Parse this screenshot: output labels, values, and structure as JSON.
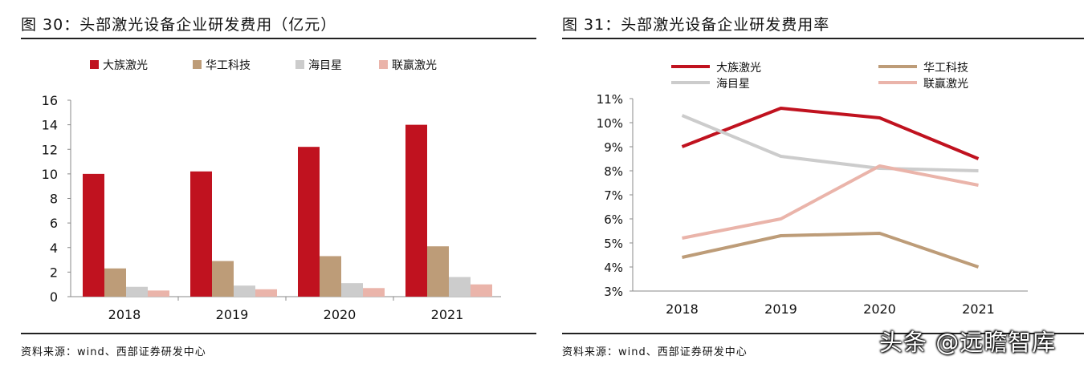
{
  "watermark": "头条 @远瞻智库",
  "colors": {
    "大族激光": "#c0121f",
    "华工科技": "#bd9c78",
    "海目星": "#cccccc",
    "联赢激光": "#eab4aa"
  },
  "chart_data": [
    {
      "type": "bar",
      "title": "图 30：头部激光设备企业研发费用（亿元）",
      "source": "资料来源：wind、西部证券研发中心",
      "categories": [
        "2018",
        "2019",
        "2020",
        "2021"
      ],
      "series": [
        {
          "name": "大族激光",
          "values": [
            10.0,
            10.2,
            12.2,
            14.0
          ]
        },
        {
          "name": "华工科技",
          "values": [
            2.3,
            2.9,
            3.3,
            4.1
          ]
        },
        {
          "name": "海目星",
          "values": [
            0.8,
            0.9,
            1.1,
            1.6
          ]
        },
        {
          "name": "联赢激光",
          "values": [
            0.5,
            0.6,
            0.7,
            1.0
          ]
        }
      ],
      "ylim": [
        0,
        16
      ],
      "yticks": [
        "0",
        "2",
        "4",
        "6",
        "8",
        "10",
        "12",
        "14",
        "16"
      ],
      "legend_position": "top",
      "xlabel": "",
      "ylabel": ""
    },
    {
      "type": "line",
      "title": "图 31：头部激光设备企业研发费用率",
      "source": "资料来源：wind、西部证券研发中心",
      "categories": [
        "2018",
        "2019",
        "2020",
        "2021"
      ],
      "series": [
        {
          "name": "大族激光",
          "values": [
            9.0,
            10.6,
            10.2,
            8.5
          ]
        },
        {
          "name": "华工科技",
          "values": [
            4.4,
            5.3,
            5.4,
            4.0
          ]
        },
        {
          "name": "海目星",
          "values": [
            10.3,
            8.6,
            8.1,
            8.0
          ]
        },
        {
          "name": "联赢激光",
          "values": [
            5.2,
            6.0,
            8.2,
            7.4
          ]
        }
      ],
      "ylim": [
        3,
        11
      ],
      "yticks": [
        "3%",
        "4%",
        "5%",
        "6%",
        "7%",
        "8%",
        "9%",
        "10%",
        "11%"
      ],
      "legend_position": "top",
      "xlabel": "",
      "ylabel": ""
    }
  ]
}
